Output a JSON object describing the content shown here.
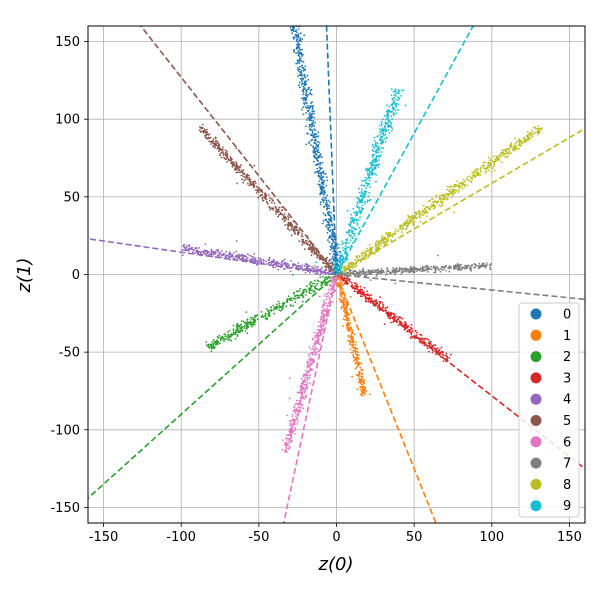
{
  "chart_data": {
    "type": "scatter",
    "title": "",
    "xlabel": "z(0)",
    "ylabel": "z(1)",
    "xlim": [
      -160,
      160
    ],
    "ylim": [
      -160,
      160
    ],
    "xticks": [
      -150,
      -100,
      -50,
      0,
      50,
      100,
      150
    ],
    "yticks": [
      150,
      100,
      50,
      0,
      -50,
      -100,
      -150
    ],
    "grid": true,
    "legend_position": "lower-right",
    "series": [
      {
        "name": "0",
        "color": "#1f77b4",
        "start": [
          -27,
          160
        ],
        "end": [
          1,
          0
        ],
        "line_end": [
          -8,
          200
        ],
        "width": 3
      },
      {
        "name": "1",
        "color": "#ff7f0e",
        "start": [
          1,
          -2
        ],
        "end": [
          18,
          -78
        ],
        "line_end": [
          64,
          -160
        ],
        "width": 2
      },
      {
        "name": "2",
        "color": "#2ca02c",
        "start": [
          -83,
          -47
        ],
        "end": [
          -2,
          -1
        ],
        "line_end": [
          -160,
          -144
        ],
        "width": 3
      },
      {
        "name": "3",
        "color": "#d62728",
        "start": [
          3,
          -1
        ],
        "end": [
          72,
          -55
        ],
        "line_end": [
          160,
          -125
        ],
        "width": 2.5
      },
      {
        "name": "4",
        "color": "#9467bd",
        "start": [
          -99,
          17
        ],
        "end": [
          -2,
          1
        ],
        "line_end": [
          -160,
          23
        ],
        "width": 2.5
      },
      {
        "name": "5",
        "color": "#8c564b",
        "start": [
          -88,
          95
        ],
        "end": [
          -2,
          2
        ],
        "line_end": [
          -126,
          160
        ],
        "width": 2.5
      },
      {
        "name": "6",
        "color": "#e377c2",
        "start": [
          -33,
          -115
        ],
        "end": [
          -1,
          -2
        ],
        "line_end": [
          -34,
          -160
        ],
        "width": 2.5
      },
      {
        "name": "7",
        "color": "#7f7f7f",
        "start": [
          2,
          0
        ],
        "end": [
          100,
          6
        ],
        "line_end": [
          160,
          -16
        ],
        "width": 2
      },
      {
        "name": "8",
        "color": "#bcbd22",
        "start": [
          3,
          2
        ],
        "end": [
          132,
          95
        ],
        "line_end": [
          160,
          94
        ],
        "width": 3
      },
      {
        "name": "9",
        "color": "#17becf",
        "start": [
          1,
          2
        ],
        "end": [
          40,
          120
        ],
        "line_end": [
          88,
          160
        ],
        "width": 3.5
      }
    ]
  }
}
